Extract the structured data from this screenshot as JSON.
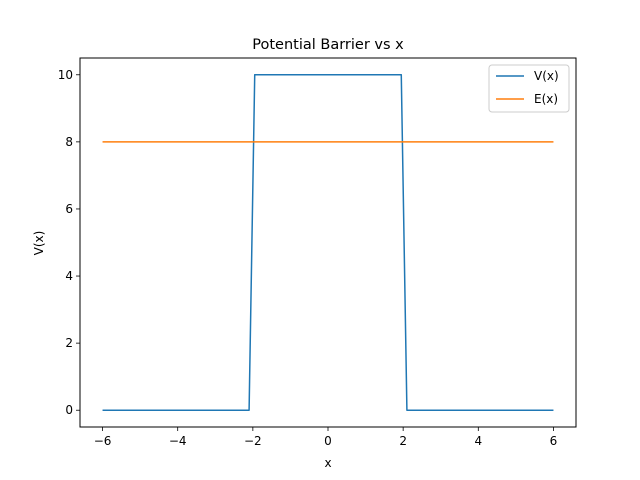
{
  "chart_data": {
    "type": "line",
    "title": "Potential Barrier vs x",
    "xlabel": "x",
    "ylabel": "V(x)",
    "xlim": [
      -6.6,
      6.6
    ],
    "ylim": [
      -0.5,
      10.5
    ],
    "xticks": [
      -6,
      -4,
      -2,
      0,
      2,
      4,
      6
    ],
    "xtick_labels": [
      "−6",
      "−4",
      "−2",
      "0",
      "2",
      "4",
      "6"
    ],
    "yticks": [
      0,
      2,
      4,
      6,
      8,
      10
    ],
    "ytick_labels": [
      "0",
      "2",
      "4",
      "6",
      "8",
      "10"
    ],
    "grid": false,
    "legend_position": "upper right",
    "series": [
      {
        "name": "V(x)",
        "color": "#1f77b4",
        "x": [
          -6,
          -2.1,
          -1.95,
          1.95,
          2.1,
          6
        ],
        "y": [
          0,
          0,
          10,
          10,
          0,
          0
        ]
      },
      {
        "name": "E(x)",
        "color": "#ff7f0e",
        "x": [
          -6,
          6
        ],
        "y": [
          8,
          8
        ]
      }
    ]
  }
}
